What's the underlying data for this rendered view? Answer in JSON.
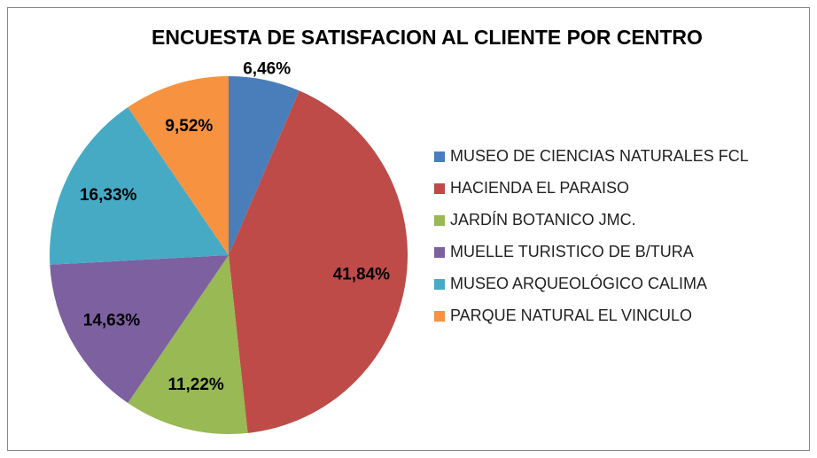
{
  "chart_data": {
    "type": "pie",
    "title": "ENCUESTA DE SATISFACION AL CLIENTE POR CENTRO",
    "categories": [
      "MUSEO DE CIENCIAS NATURALES FCL",
      "HACIENDA EL PARAISO",
      "JARDÍN BOTANICO JMC.",
      "MUELLE TURISTICO DE B/TURA",
      "MUSEO ARQUEOLÓGICO CALIMA",
      "PARQUE NATURAL EL VINCULO"
    ],
    "values": [
      6.46,
      41.84,
      11.22,
      14.63,
      16.33,
      9.52
    ],
    "value_labels": [
      "6,46%",
      "41,84%",
      "11,22%",
      "14,63%",
      "16,33%",
      "9,52%"
    ],
    "colors": [
      "#4a7ebb",
      "#be4b48",
      "#98b954",
      "#7d60a0",
      "#46aac5",
      "#f69240"
    ],
    "legend": "right"
  }
}
